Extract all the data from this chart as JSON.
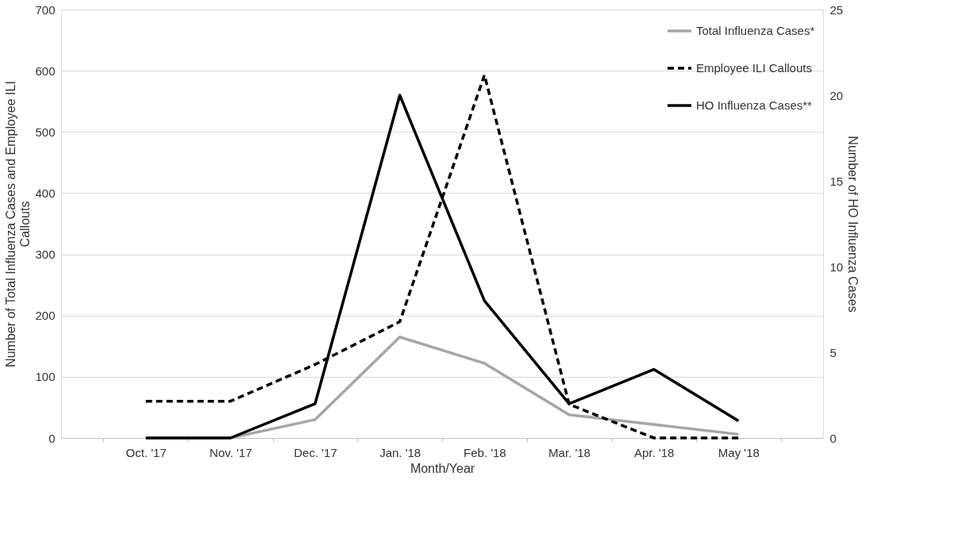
{
  "chart_data": {
    "type": "line",
    "categories": [
      "Oct. '17",
      "Nov. '17",
      "Dec. '17",
      "Jan. '18",
      "Feb. '18",
      "Mar. '18",
      "Apr. '18",
      "May '18"
    ],
    "xlabel": "Month/Year",
    "ylabel": "Number of Total Influenza Cases and Employee ILI Callouts",
    "y2label": "Number of HO Influenza Cases",
    "ylim": [
      0,
      700
    ],
    "yticks": [
      0,
      100,
      200,
      300,
      400,
      500,
      600,
      700
    ],
    "y2lim": [
      0,
      25
    ],
    "y2ticks": [
      0,
      5,
      10,
      15,
      20,
      25
    ],
    "grid": "y",
    "legend": "top right",
    "marker": "none",
    "series": [
      {
        "name": "Total Influenza Cases*",
        "color": "#a6a6a6",
        "line_style": "solid",
        "values": [
          0,
          0,
          30,
          165,
          122,
          38,
          22,
          6
        ]
      },
      {
        "name": "Employee ILI Callouts",
        "color": "#000000",
        "line_style": "dashed",
        "values": [
          60,
          60,
          120,
          190,
          593,
          55,
          0,
          0
        ]
      },
      {
        "name": "HO Influenza Cases**",
        "color": "#000000",
        "line_style": "solid",
        "axis": "y2",
        "values": [
          0,
          0,
          2,
          20,
          8,
          2,
          4,
          1
        ]
      }
    ]
  }
}
